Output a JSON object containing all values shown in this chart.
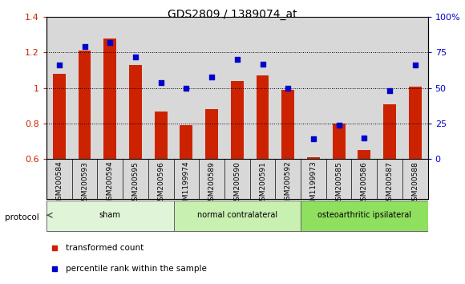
{
  "title": "GDS2809 / 1389074_at",
  "samples": [
    "GSM200584",
    "GSM200593",
    "GSM200594",
    "GSM200595",
    "GSM200596",
    "GSM1199974",
    "GSM200589",
    "GSM200590",
    "GSM200591",
    "GSM200592",
    "GSM1199973",
    "GSM200585",
    "GSM200586",
    "GSM200587",
    "GSM200588"
  ],
  "red_values": [
    1.08,
    1.21,
    1.28,
    1.13,
    0.87,
    0.79,
    0.88,
    1.04,
    1.07,
    0.99,
    0.61,
    0.8,
    0.65,
    0.91,
    1.01
  ],
  "blue_pct": [
    66,
    79,
    82,
    72,
    54,
    50,
    58,
    70,
    67,
    50,
    14,
    24,
    15,
    48,
    66
  ],
  "ylim_left": [
    0.6,
    1.4
  ],
  "ylim_right": [
    0,
    100
  ],
  "yticks_left": [
    0.6,
    0.8,
    1.0,
    1.2,
    1.4
  ],
  "yticks_right": [
    0,
    25,
    50,
    75,
    100
  ],
  "ytick_labels_right": [
    "0",
    "25",
    "50",
    "75",
    "100%"
  ],
  "ytick_labels_left": [
    "0.6",
    "0.8",
    "1",
    "1.2",
    "1.4"
  ],
  "groups": [
    {
      "label": "sham",
      "start": 0,
      "end": 4,
      "color": "#e0f5d8"
    },
    {
      "label": "normal contralateral",
      "start": 5,
      "end": 9,
      "color": "#c8f0b0"
    },
    {
      "label": "osteoarthritic ipsilateral",
      "start": 10,
      "end": 14,
      "color": "#90e060"
    }
  ],
  "bar_color": "#cc2200",
  "dot_color": "#0000cc",
  "legend_items": [
    {
      "label": "transformed count",
      "color": "#cc2200"
    },
    {
      "label": "percentile rank within the sample",
      "color": "#0000cc"
    }
  ],
  "protocol_label": "protocol",
  "bg_color": "#ffffff",
  "label_bg": "#d8d8d8",
  "bar_width": 0.5
}
